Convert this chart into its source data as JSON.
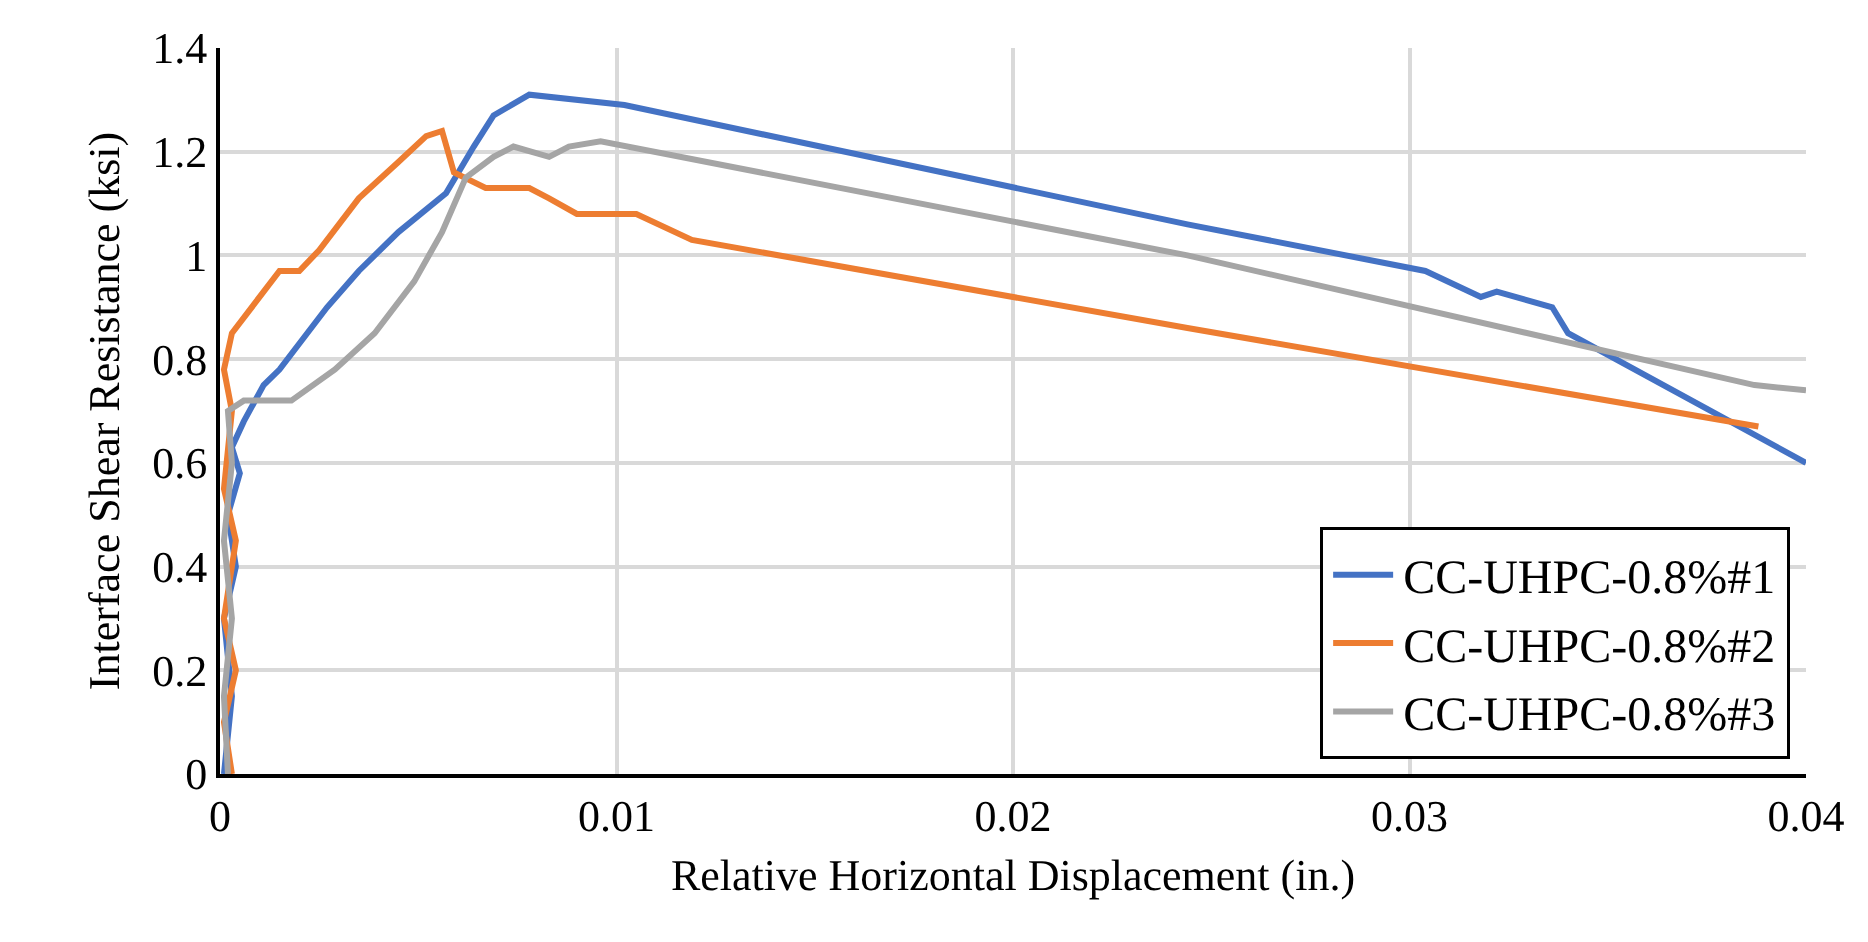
{
  "chart_data": {
    "type": "line",
    "xlabel": "Relative Horizontal Displacement (in.)",
    "ylabel": "Interface Shear Resistance (ksi)",
    "xlim": [
      0,
      0.04
    ],
    "xticks": [
      0,
      0.01,
      0.02,
      0.03,
      0.04
    ],
    "ylim": [
      0,
      1.4
    ],
    "yticks": [
      0,
      0.2,
      0.4,
      0.6,
      0.8,
      1,
      1.2,
      1.4
    ],
    "grid": true,
    "legend": "bottom right",
    "marker": "none",
    "line_style": "solid",
    "series": [
      {
        "name": "CC-UHPC-0.8%#1",
        "color": "#4472c4",
        "x": [
          0.0001,
          0.0003,
          0.0001,
          0.0004,
          0.0002,
          0.0005,
          0.0003,
          0.0006,
          0.0011,
          0.0015,
          0.0027,
          0.0035,
          0.0045,
          0.0057,
          0.0064,
          0.0069,
          0.0078,
          0.0102,
          0.0244,
          0.0304,
          0.0318,
          0.0322,
          0.0336,
          0.034,
          0.04
        ],
        "values": [
          0,
          0.15,
          0.3,
          0.4,
          0.5,
          0.58,
          0.63,
          0.68,
          0.75,
          0.78,
          0.9,
          0.97,
          1.045,
          1.12,
          1.21,
          1.27,
          1.31,
          1.29,
          1.06,
          0.97,
          0.92,
          0.93,
          0.9,
          0.85,
          0.6
        ]
      },
      {
        "name": "CC-UHPC-0.8%#2",
        "color": "#ed7d31",
        "x": [
          0.0003,
          0.0001,
          0.0004,
          0.0001,
          0.0004,
          0.0001,
          0.0003,
          0.0001,
          0.0003,
          0.0015,
          0.002,
          0.0025,
          0.0035,
          0.0045,
          0.0052,
          0.0056,
          0.0059,
          0.0067,
          0.0078,
          0.0083,
          0.009,
          0.0105,
          0.0119,
          0.0244,
          0.0388
        ],
        "values": [
          0,
          0.1,
          0.2,
          0.3,
          0.45,
          0.55,
          0.7,
          0.78,
          0.85,
          0.97,
          0.97,
          1.01,
          1.11,
          1.18,
          1.23,
          1.24,
          1.16,
          1.13,
          1.13,
          1.11,
          1.08,
          1.08,
          1.03,
          0.86,
          0.67
        ]
      },
      {
        "name": "CC-UHPC-0.8%#3",
        "color": "#a5a5a5",
        "x": [
          0.0002,
          0.0001,
          0.0003,
          0.0001,
          0.0003,
          0.0002,
          0.0006,
          0.0018,
          0.0029,
          0.0039,
          0.0049,
          0.0056,
          0.0062,
          0.0069,
          0.0074,
          0.0083,
          0.0088,
          0.0096,
          0.0244,
          0.0387,
          0.04
        ],
        "values": [
          0,
          0.15,
          0.3,
          0.45,
          0.6,
          0.7,
          0.72,
          0.72,
          0.78,
          0.85,
          0.95,
          1.045,
          1.15,
          1.19,
          1.21,
          1.19,
          1.21,
          1.22,
          1.0,
          0.75,
          0.74
        ]
      }
    ]
  }
}
